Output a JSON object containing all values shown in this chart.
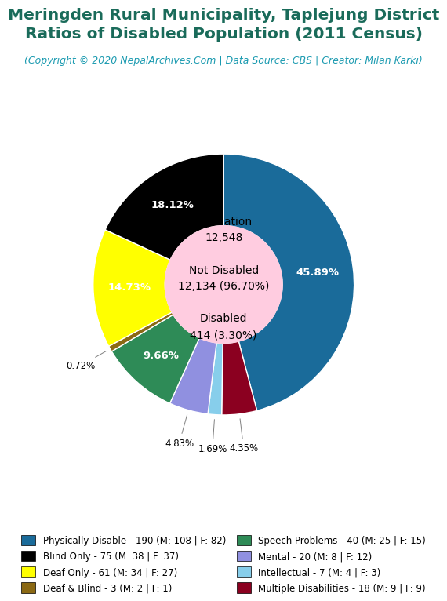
{
  "title_line1": "Meringden Rural Municipality, Taplejung District",
  "title_line2": "Ratios of Disabled Population (2011 Census)",
  "subtitle": "(Copyright © 2020 NepalArchives.Com | Data Source: CBS | Creator: Milan Karki)",
  "title_color": "#1a6b5a",
  "subtitle_color": "#1a9ab0",
  "total_population": 12548,
  "not_disabled": 12134,
  "not_disabled_pct": 96.7,
  "disabled": 414,
  "disabled_pct": 3.3,
  "segments": [
    {
      "label": "Physically Disable - 190 (M: 108 | F: 82)",
      "value": 190,
      "pct": 45.89,
      "color": "#1a6b9a"
    },
    {
      "label": "Multiple Disabilities - 18 (M: 9 | F: 9)",
      "value": 18,
      "pct": 4.35,
      "color": "#8b0020"
    },
    {
      "label": "Intellectual - 7 (M: 4 | F: 3)",
      "value": 7,
      "pct": 1.69,
      "color": "#87ceeb"
    },
    {
      "label": "Mental - 20 (M: 8 | F: 12)",
      "value": 20,
      "pct": 4.83,
      "color": "#9090e0"
    },
    {
      "label": "Speech Problems - 40 (M: 25 | F: 15)",
      "value": 40,
      "pct": 9.66,
      "color": "#2e8b57"
    },
    {
      "label": "Deaf & Blind - 3 (M: 2 | F: 1)",
      "value": 3,
      "pct": 0.72,
      "color": "#8b6914"
    },
    {
      "label": "Deaf Only - 61 (M: 34 | F: 27)",
      "value": 61,
      "pct": 14.73,
      "color": "#ffff00"
    },
    {
      "label": "Blind Only - 75 (M: 38 | F: 37)",
      "value": 75,
      "pct": 18.12,
      "color": "#000000"
    }
  ],
  "legend_order": [
    {
      "label": "Physically Disable - 190 (M: 108 | F: 82)",
      "color": "#1a6b9a"
    },
    {
      "label": "Blind Only - 75 (M: 38 | F: 37)",
      "color": "#000000"
    },
    {
      "label": "Deaf Only - 61 (M: 34 | F: 27)",
      "color": "#ffff00"
    },
    {
      "label": "Deaf & Blind - 3 (M: 2 | F: 1)",
      "color": "#8b6914"
    },
    {
      "label": "Speech Problems - 40 (M: 25 | F: 15)",
      "color": "#2e8b57"
    },
    {
      "label": "Mental - 20 (M: 8 | F: 12)",
      "color": "#9090e0"
    },
    {
      "label": "Intellectual - 7 (M: 4 | F: 3)",
      "color": "#87ceeb"
    },
    {
      "label": "Multiple Disabilities - 18 (M: 9 | F: 9)",
      "color": "#8b0020"
    }
  ],
  "center_label_color": "#000000",
  "donut_hole_color": "#ffcce0",
  "background_color": "#ffffff",
  "large_label_threshold": 9.0
}
